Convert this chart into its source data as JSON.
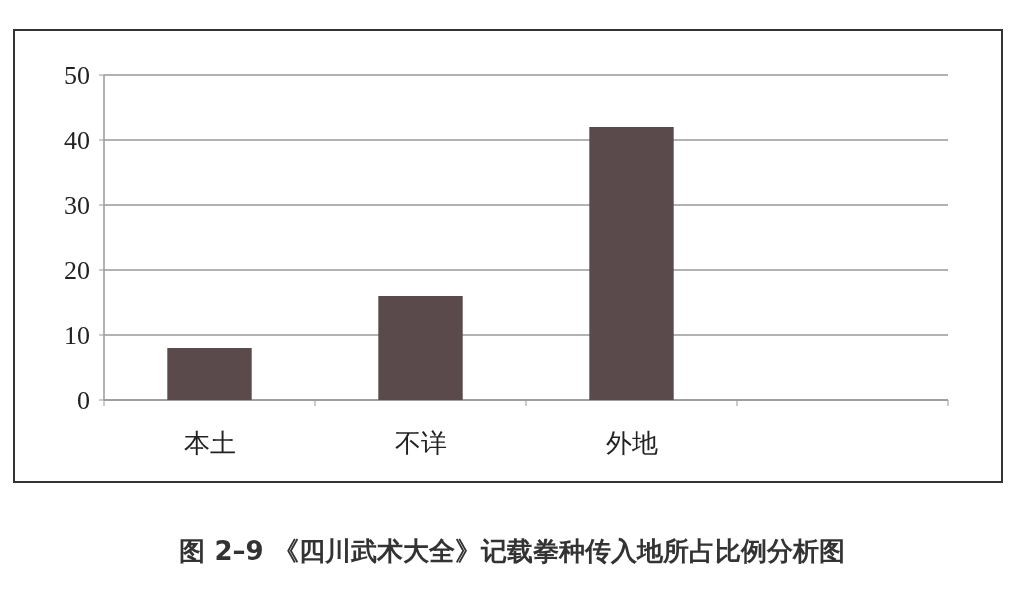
{
  "chart_data": {
    "type": "bar",
    "title": "图 2–9 《四川武术大全》记载拳种传入地所占比例分析图",
    "categories": [
      "本土",
      "不详",
      "外地",
      null
    ],
    "values": [
      8,
      16,
      42,
      null
    ],
    "color": "#5a4a4c",
    "ylim": [
      0,
      50
    ],
    "yticks": [
      0,
      10,
      20,
      30,
      40,
      50
    ],
    "grid": "y"
  }
}
